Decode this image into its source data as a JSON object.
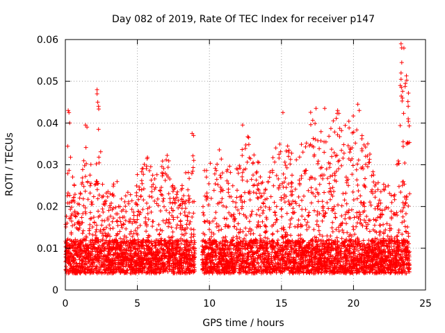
{
  "chart_data": {
    "type": "scatter",
    "title": "Day 082 of 2019, Rate Of TEC Index for receiver p147",
    "xlabel": "GPS time / hours",
    "ylabel": "ROTI / TECUs",
    "xlim": [
      0,
      25
    ],
    "ylim": [
      0,
      0.06
    ],
    "x_ticks": [
      0,
      5,
      10,
      15,
      20,
      25
    ],
    "x_tick_labels": [
      "0",
      "5",
      "10",
      "15",
      "20",
      "25"
    ],
    "y_ticks": [
      0,
      0.01,
      0.02,
      0.03,
      0.04,
      0.05,
      0.06
    ],
    "y_tick_labels": [
      "0",
      "0.01",
      "0.02",
      "0.03",
      "0.04",
      "0.05",
      "0.06"
    ],
    "grid": true,
    "marker": "+",
    "marker_color": "#ff0000",
    "data_gap_hours": [
      9.0,
      9.5
    ],
    "series": [
      {
        "name": "ROTI",
        "envelope_hours": [
          0.0,
          0.2,
          0.5,
          1.0,
          1.5,
          2.0,
          2.3,
          2.7,
          3.0,
          3.5,
          4.0,
          4.5,
          5.0,
          5.5,
          6.0,
          6.5,
          7.0,
          7.5,
          8.0,
          8.5,
          9.0,
          9.5,
          10.0,
          10.5,
          11.0,
          11.5,
          12.0,
          12.5,
          13.0,
          13.5,
          14.0,
          14.5,
          15.0,
          15.5,
          16.0,
          16.5,
          17.0,
          17.5,
          18.0,
          18.5,
          19.0,
          19.5,
          20.0,
          20.5,
          21.0,
          21.5,
          22.0,
          22.5,
          23.0,
          23.5,
          23.9
        ],
        "envelope_peak": [
          0.03,
          0.04,
          0.028,
          0.024,
          0.039,
          0.024,
          0.045,
          0.022,
          0.025,
          0.026,
          0.027,
          0.026,
          0.028,
          0.033,
          0.031,
          0.028,
          0.034,
          0.026,
          0.024,
          0.03,
          0.037,
          0.029,
          0.03,
          0.033,
          0.035,
          0.03,
          0.029,
          0.039,
          0.034,
          0.03,
          0.028,
          0.033,
          0.042,
          0.034,
          0.032,
          0.036,
          0.043,
          0.04,
          0.036,
          0.042,
          0.043,
          0.039,
          0.044,
          0.039,
          0.035,
          0.03,
          0.026,
          0.025,
          0.03,
          0.059,
          0.044
        ],
        "baseline_range": [
          0.004,
          0.012
        ],
        "highlight_points": [
          {
            "x": 0.2,
            "y": 0.043
          },
          {
            "x": 0.25,
            "y": 0.0425
          },
          {
            "x": 0.3,
            "y": 0.04
          },
          {
            "x": 1.4,
            "y": 0.0395
          },
          {
            "x": 1.5,
            "y": 0.039
          },
          {
            "x": 2.2,
            "y": 0.048
          },
          {
            "x": 2.2,
            "y": 0.047
          },
          {
            "x": 2.25,
            "y": 0.045
          },
          {
            "x": 2.3,
            "y": 0.044
          },
          {
            "x": 2.3,
            "y": 0.0385
          },
          {
            "x": 8.8,
            "y": 0.0375
          },
          {
            "x": 8.9,
            "y": 0.037
          },
          {
            "x": 12.3,
            "y": 0.0395
          },
          {
            "x": 15.1,
            "y": 0.0425
          },
          {
            "x": 17.4,
            "y": 0.0435
          },
          {
            "x": 18.0,
            "y": 0.0435
          },
          {
            "x": 18.9,
            "y": 0.043
          },
          {
            "x": 20.3,
            "y": 0.0445
          },
          {
            "x": 20.4,
            "y": 0.043
          },
          {
            "x": 23.3,
            "y": 0.059
          },
          {
            "x": 23.35,
            "y": 0.058
          },
          {
            "x": 23.35,
            "y": 0.0545
          },
          {
            "x": 23.3,
            "y": 0.052
          },
          {
            "x": 23.3,
            "y": 0.0505
          },
          {
            "x": 23.25,
            "y": 0.049
          },
          {
            "x": 23.4,
            "y": 0.046
          },
          {
            "x": 23.8,
            "y": 0.044
          },
          {
            "x": 23.8,
            "y": 0.041
          },
          {
            "x": 23.7,
            "y": 0.035
          }
        ]
      }
    ]
  }
}
